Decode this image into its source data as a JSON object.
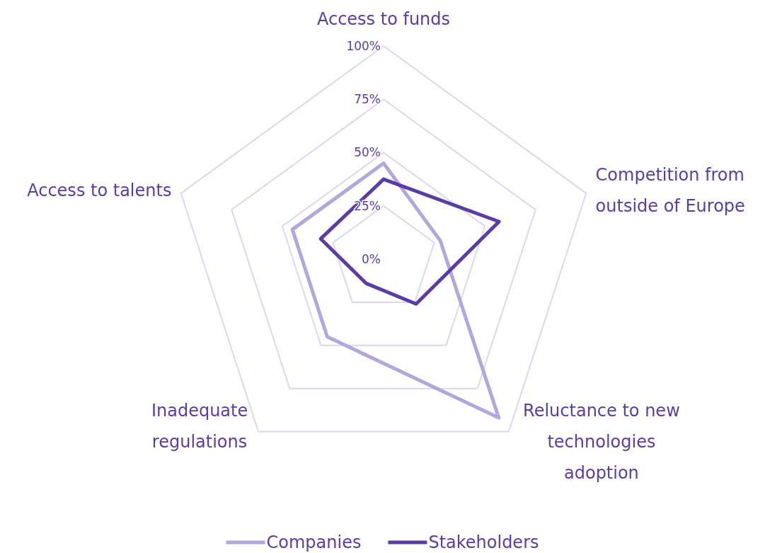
{
  "chart_data": {
    "type": "radar",
    "categories": [
      "Access to funds",
      "Competition from outside of Europe",
      "Reluctance to new technologies adoption",
      "Inadequate regulations",
      "Access to talents"
    ],
    "series": [
      {
        "name": "Companies",
        "color": "#b3a6dc",
        "values": [
          45,
          28,
          92,
          45,
          45
        ]
      },
      {
        "name": "Stakeholders",
        "color": "#5b3ba5",
        "values": [
          37.5,
          57,
          26,
          14,
          31
        ]
      }
    ],
    "ylim": [
      0,
      100
    ],
    "yticks": [
      {
        "value": 0,
        "label": "0%"
      },
      {
        "value": 25,
        "label": "25%"
      },
      {
        "value": 50,
        "label": "50%"
      },
      {
        "value": 75,
        "label": "75%"
      },
      {
        "value": 100,
        "label": "100%"
      }
    ],
    "grid": true,
    "legend": "bottom",
    "marker": "none"
  }
}
